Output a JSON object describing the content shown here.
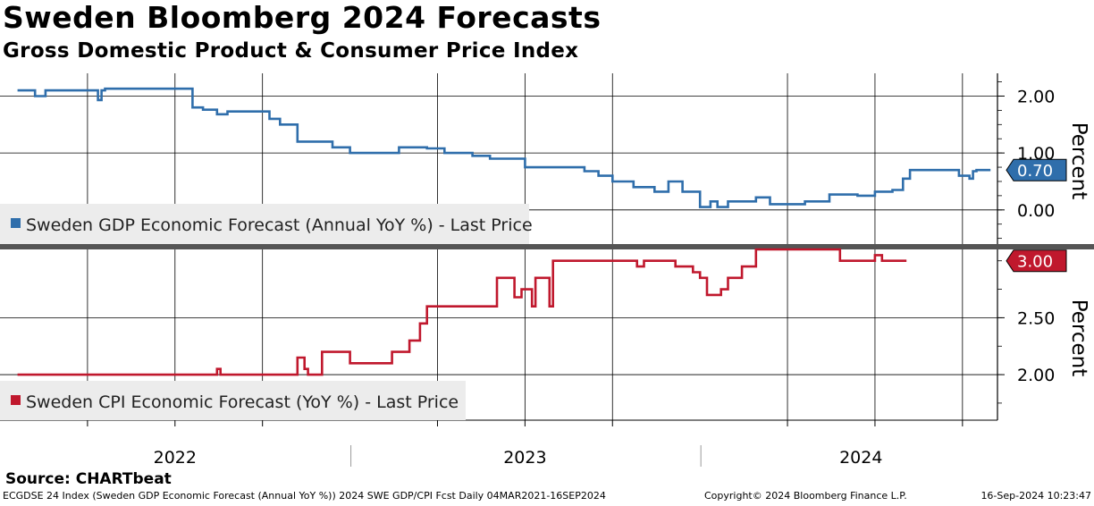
{
  "header": {
    "title": "Sweden Bloomberg 2024 Forecasts",
    "subtitle": "Gross Domestic Product & Consumer Price Index"
  },
  "footer": {
    "source": "Source: CHARTbeat",
    "info": "ECGDSE 24 Index (Sweden GDP Economic Forecast (Annual YoY %)) 2024 SWE GDP/CPI Fcst  Daily 04MAR2021-16SEP2024",
    "copyright": "Copyright© 2024 Bloomberg Finance L.P.",
    "timestamp": "16-Sep-2024 10:23:47"
  },
  "colors": {
    "gdp": "#2f6eab",
    "cpi": "#c0182d",
    "grid": "#000000"
  },
  "chart_data": [
    {
      "type": "line",
      "panel": "top",
      "ylabel": "Percent",
      "ylim": [
        -0.6,
        2.4
      ],
      "yticks": [
        {
          "value": 0.0,
          "label": "0.00"
        },
        {
          "value": 1.0,
          "label": "1.00"
        },
        {
          "value": 2.0,
          "label": "2.00"
        }
      ],
      "last_value": 0.7,
      "last_label": "0.70",
      "legend": "Sweden GDP Economic Forecast (Annual YoY %) - Last Price",
      "legend_position": "bottom-left",
      "series": [
        {
          "name": "Sweden GDP Economic Forecast (Annual YoY %) - Last Price",
          "x_unit": "year",
          "points": [
            [
              2021.55,
              2.1
            ],
            [
              2021.6,
              2.1
            ],
            [
              2021.6,
              2.0
            ],
            [
              2021.63,
              2.0
            ],
            [
              2021.63,
              2.1
            ],
            [
              2021.78,
              2.1
            ],
            [
              2021.78,
              1.93
            ],
            [
              2021.79,
              1.93
            ],
            [
              2021.79,
              2.1
            ],
            [
              2021.8,
              2.1
            ],
            [
              2021.8,
              2.13
            ],
            [
              2022.05,
              2.13
            ],
            [
              2022.05,
              1.8
            ],
            [
              2022.08,
              1.8
            ],
            [
              2022.08,
              1.76
            ],
            [
              2022.12,
              1.76
            ],
            [
              2022.12,
              1.68
            ],
            [
              2022.15,
              1.68
            ],
            [
              2022.15,
              1.73
            ],
            [
              2022.27,
              1.73
            ],
            [
              2022.27,
              1.6
            ],
            [
              2022.3,
              1.6
            ],
            [
              2022.3,
              1.5
            ],
            [
              2022.35,
              1.5
            ],
            [
              2022.35,
              1.2
            ],
            [
              2022.45,
              1.2
            ],
            [
              2022.45,
              1.1
            ],
            [
              2022.5,
              1.1
            ],
            [
              2022.5,
              1.0
            ],
            [
              2022.64,
              1.0
            ],
            [
              2022.64,
              1.1
            ],
            [
              2022.72,
              1.1
            ],
            [
              2022.72,
              1.08
            ],
            [
              2022.77,
              1.08
            ],
            [
              2022.77,
              1.0
            ],
            [
              2022.85,
              1.0
            ],
            [
              2022.85,
              0.95
            ],
            [
              2022.9,
              0.95
            ],
            [
              2022.9,
              0.9
            ],
            [
              2023.0,
              0.9
            ],
            [
              2023.0,
              0.75
            ],
            [
              2023.17,
              0.75
            ],
            [
              2023.17,
              0.68
            ],
            [
              2023.21,
              0.68
            ],
            [
              2023.21,
              0.6
            ],
            [
              2023.25,
              0.6
            ],
            [
              2023.25,
              0.5
            ],
            [
              2023.31,
              0.5
            ],
            [
              2023.31,
              0.4
            ],
            [
              2023.37,
              0.4
            ],
            [
              2023.37,
              0.32
            ],
            [
              2023.41,
              0.32
            ],
            [
              2023.41,
              0.5
            ],
            [
              2023.45,
              0.5
            ],
            [
              2023.45,
              0.32
            ],
            [
              2023.5,
              0.32
            ],
            [
              2023.5,
              0.05
            ],
            [
              2023.53,
              0.05
            ],
            [
              2023.53,
              0.15
            ],
            [
              2023.55,
              0.15
            ],
            [
              2023.55,
              0.05
            ],
            [
              2023.58,
              0.05
            ],
            [
              2023.58,
              0.15
            ],
            [
              2023.66,
              0.15
            ],
            [
              2023.66,
              0.22
            ],
            [
              2023.7,
              0.22
            ],
            [
              2023.7,
              0.1
            ],
            [
              2023.8,
              0.1
            ],
            [
              2023.8,
              0.15
            ],
            [
              2023.87,
              0.15
            ],
            [
              2023.87,
              0.27
            ],
            [
              2023.95,
              0.27
            ],
            [
              2023.95,
              0.25
            ],
            [
              2024.0,
              0.25
            ],
            [
              2024.0,
              0.32
            ],
            [
              2024.05,
              0.32
            ],
            [
              2024.05,
              0.35
            ],
            [
              2024.08,
              0.35
            ],
            [
              2024.08,
              0.55
            ],
            [
              2024.1,
              0.55
            ],
            [
              2024.1,
              0.7
            ],
            [
              2024.24,
              0.7
            ],
            [
              2024.24,
              0.6
            ],
            [
              2024.27,
              0.6
            ],
            [
              2024.27,
              0.55
            ],
            [
              2024.28,
              0.55
            ],
            [
              2024.28,
              0.68
            ],
            [
              2024.29,
              0.68
            ],
            [
              2024.29,
              0.7
            ],
            [
              2024.33,
              0.7
            ]
          ]
        }
      ]
    },
    {
      "type": "line",
      "panel": "bottom",
      "ylabel": "Percent",
      "ylim": [
        1.6,
        3.1
      ],
      "yticks": [
        {
          "value": 2.0,
          "label": "2.00"
        },
        {
          "value": 2.5,
          "label": "2.50"
        }
      ],
      "last_value": 3.0,
      "last_label": "3.00",
      "legend": "Sweden CPI Economic Forecast (YoY %) - Last Price",
      "legend_position": "bottom-left",
      "series": [
        {
          "name": "Sweden CPI Economic Forecast (YoY %) - Last Price",
          "x_unit": "year",
          "points": [
            [
              2021.55,
              2.0
            ],
            [
              2022.12,
              2.0
            ],
            [
              2022.12,
              2.05
            ],
            [
              2022.13,
              2.05
            ],
            [
              2022.13,
              2.0
            ],
            [
              2022.35,
              2.0
            ],
            [
              2022.35,
              2.15
            ],
            [
              2022.37,
              2.15
            ],
            [
              2022.37,
              2.05
            ],
            [
              2022.38,
              2.05
            ],
            [
              2022.38,
              2.0
            ],
            [
              2022.42,
              2.0
            ],
            [
              2022.42,
              2.2
            ],
            [
              2022.5,
              2.2
            ],
            [
              2022.5,
              2.1
            ],
            [
              2022.62,
              2.1
            ],
            [
              2022.62,
              2.2
            ],
            [
              2022.67,
              2.2
            ],
            [
              2022.67,
              2.3
            ],
            [
              2022.7,
              2.3
            ],
            [
              2022.7,
              2.45
            ],
            [
              2022.72,
              2.45
            ],
            [
              2022.72,
              2.6
            ],
            [
              2022.92,
              2.6
            ],
            [
              2022.92,
              2.85
            ],
            [
              2022.97,
              2.85
            ],
            [
              2022.97,
              2.68
            ],
            [
              2022.99,
              2.68
            ],
            [
              2022.99,
              2.75
            ],
            [
              2023.02,
              2.75
            ],
            [
              2023.02,
              2.6
            ],
            [
              2023.03,
              2.6
            ],
            [
              2023.03,
              2.85
            ],
            [
              2023.07,
              2.85
            ],
            [
              2023.07,
              2.6
            ],
            [
              2023.08,
              2.6
            ],
            [
              2023.08,
              3.0
            ],
            [
              2023.32,
              3.0
            ],
            [
              2023.32,
              2.95
            ],
            [
              2023.34,
              2.95
            ],
            [
              2023.34,
              3.0
            ],
            [
              2023.43,
              3.0
            ],
            [
              2023.43,
              2.95
            ],
            [
              2023.48,
              2.95
            ],
            [
              2023.48,
              2.9
            ],
            [
              2023.5,
              2.9
            ],
            [
              2023.5,
              2.85
            ],
            [
              2023.52,
              2.85
            ],
            [
              2023.52,
              2.7
            ],
            [
              2023.56,
              2.7
            ],
            [
              2023.56,
              2.75
            ],
            [
              2023.58,
              2.75
            ],
            [
              2023.58,
              2.85
            ],
            [
              2023.62,
              2.85
            ],
            [
              2023.62,
              2.95
            ],
            [
              2023.66,
              2.95
            ],
            [
              2023.66,
              3.1
            ],
            [
              2023.9,
              3.1
            ],
            [
              2023.9,
              3.0
            ],
            [
              2024.0,
              3.0
            ],
            [
              2024.0,
              3.05
            ],
            [
              2024.02,
              3.05
            ],
            [
              2024.02,
              3.0
            ],
            [
              2024.09,
              3.0
            ]
          ]
        }
      ]
    }
  ],
  "x_axis": {
    "years": [
      {
        "label": "2022",
        "center": 2022.0
      },
      {
        "label": "2023",
        "center": 2023.0
      },
      {
        "label": "2024",
        "center": 2023.96
      }
    ],
    "year_separators": [
      2022.5,
      2023.5
    ]
  }
}
